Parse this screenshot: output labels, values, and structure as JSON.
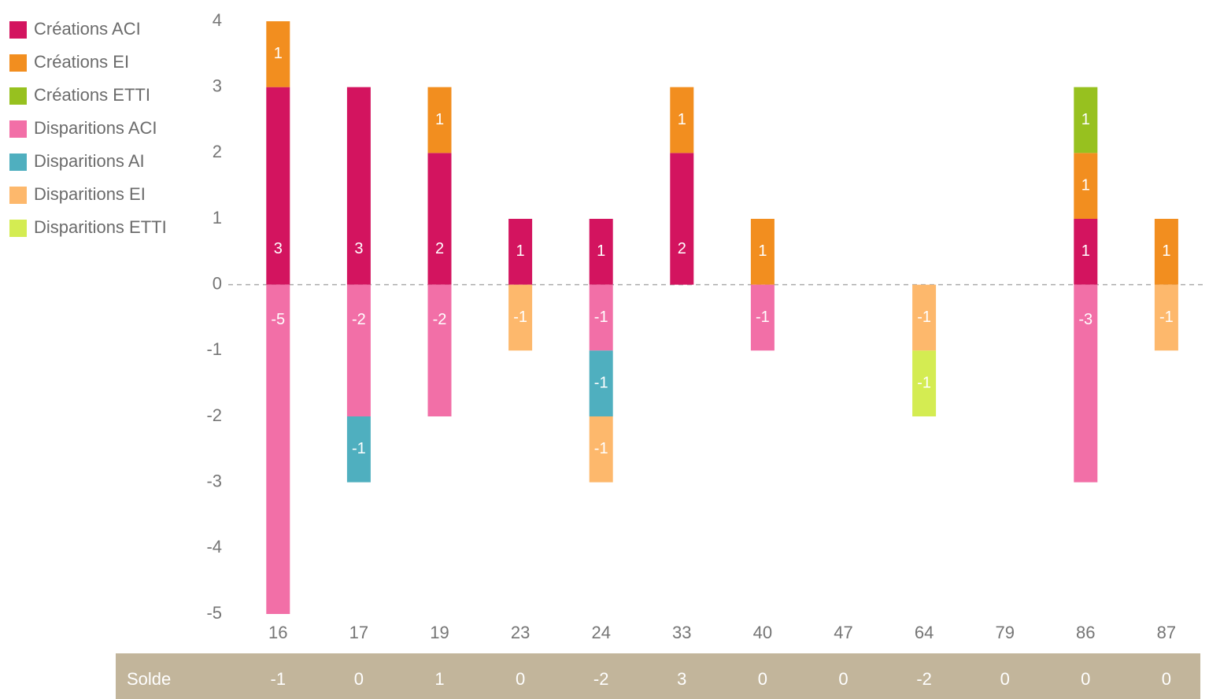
{
  "chart_data": {
    "type": "bar",
    "stacked": true,
    "categories": [
      "16",
      "17",
      "19",
      "23",
      "24",
      "33",
      "40",
      "47",
      "64",
      "79",
      "86",
      "87"
    ],
    "series": [
      {
        "name": "Créations ACI",
        "color": "#d3145f",
        "values": [
          3,
          3,
          2,
          1,
          1,
          2,
          null,
          null,
          null,
          null,
          1,
          null
        ]
      },
      {
        "name": "Créations EI",
        "color": "#f28e1f",
        "values": [
          1,
          null,
          1,
          null,
          null,
          1,
          1,
          null,
          null,
          null,
          1,
          1
        ]
      },
      {
        "name": "Créations ETTI",
        "color": "#97c11f",
        "values": [
          null,
          null,
          null,
          null,
          null,
          null,
          null,
          null,
          null,
          null,
          1,
          null
        ]
      },
      {
        "name": "Disparitions ACI",
        "color": "#f26fa7",
        "values": [
          -5,
          -2,
          -2,
          null,
          -1,
          null,
          -1,
          null,
          null,
          null,
          -3,
          null
        ]
      },
      {
        "name": "Disparitions AI",
        "color": "#4fafbf",
        "values": [
          null,
          -1,
          null,
          null,
          -1,
          null,
          null,
          null,
          null,
          null,
          null,
          null
        ]
      },
      {
        "name": "Disparitions EI",
        "color": "#fdb86c",
        "values": [
          null,
          null,
          null,
          -1,
          -1,
          null,
          null,
          null,
          -1,
          null,
          null,
          -1
        ]
      },
      {
        "name": "Disparitions ETTI",
        "color": "#d4ec52",
        "values": [
          null,
          null,
          null,
          null,
          null,
          null,
          null,
          null,
          -1,
          null,
          null,
          null
        ]
      }
    ],
    "ylim": [
      -5,
      4
    ],
    "yticks": [
      -5,
      -4,
      -3,
      -2,
      -1,
      0,
      1,
      2,
      3,
      4
    ],
    "legend": "top-left",
    "solde": {
      "label": "Solde",
      "color": "#c2b59b",
      "values": [
        -1,
        0,
        1,
        0,
        -2,
        3,
        0,
        0,
        -2,
        0,
        0,
        0
      ]
    }
  }
}
